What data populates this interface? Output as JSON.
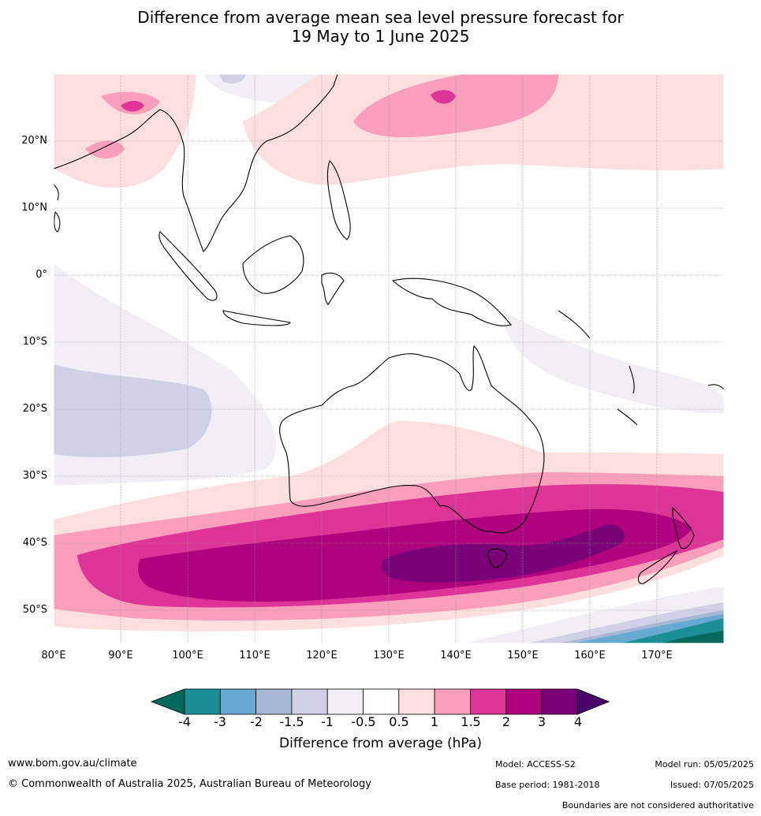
{
  "title": {
    "line1": "Difference from average mean sea level pressure forecast for",
    "line2": "19 May to 1 June 2025"
  },
  "map": {
    "latitude_labels": [
      "20°N",
      "10°N",
      "0°",
      "10°S",
      "20°S",
      "30°S",
      "40°S",
      "50°S"
    ],
    "longitude_labels": [
      "80°E",
      "90°E",
      "100°E",
      "110°E",
      "120°E",
      "130°E",
      "140°E",
      "150°E",
      "160°E",
      "170°E"
    ],
    "extent": {
      "lon_min": 80,
      "lon_max": 180,
      "lat_min": -55,
      "lat_max": 30
    }
  },
  "colorbar": {
    "tick_labels": [
      "-4",
      "-3",
      "-2",
      "-1.5",
      "-1",
      "-0.5",
      "0.5",
      "1",
      "1.5",
      "2",
      "3",
      "4"
    ],
    "colors": [
      "#00695c",
      "#1a8f96",
      "#66a9d1",
      "#a6b8d6",
      "#d0d1e6",
      "#f1eef6",
      "#ffffff",
      "#fddfdf",
      "#f99fbb",
      "#dd3497",
      "#ae017e",
      "#7a0177",
      "#49006a"
    ],
    "label": "Difference from average (hPa)"
  },
  "footer": {
    "website": "www.bom.gov.au/climate",
    "copyright": "© Commonwealth of Australia 2025, Australian Bureau of Meteorology",
    "model": "Model: ACCESS-S2",
    "base_period": "Base period: 1981-2018",
    "model_run": "Model run: 05/05/2025",
    "issued": "Issued: 07/05/2025",
    "disclaimer": "Boundaries are not considered authoritative"
  }
}
